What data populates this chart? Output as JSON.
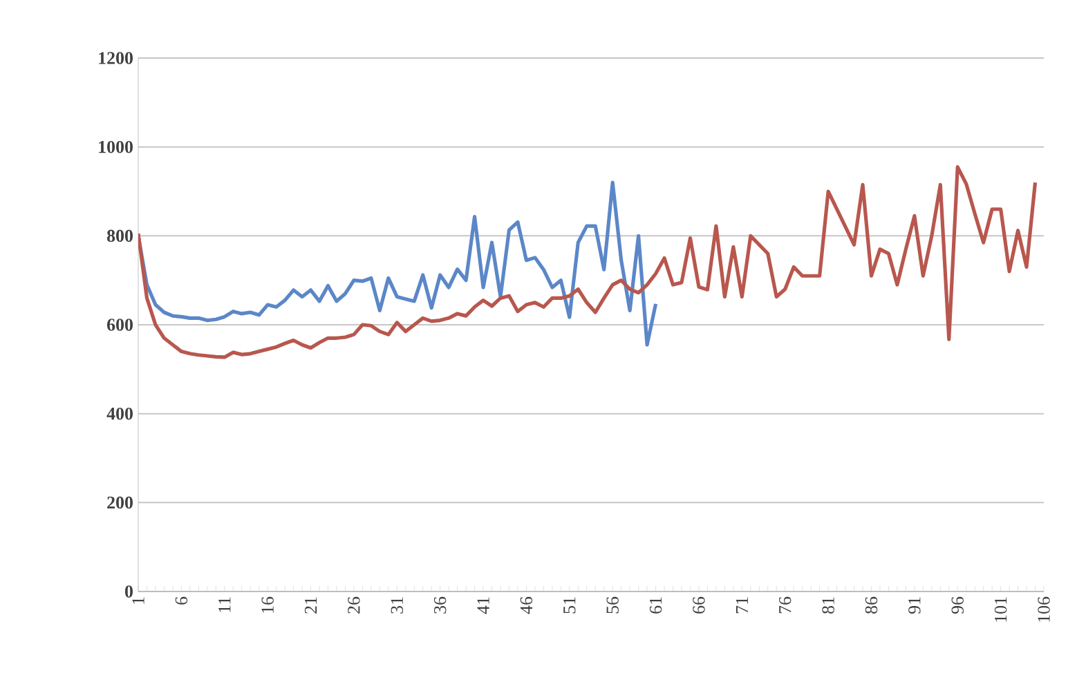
{
  "chart_data": {
    "type": "line",
    "categories": [
      "1",
      null,
      null,
      null,
      null,
      "6",
      null,
      null,
      null,
      null,
      "11",
      null,
      null,
      null,
      null,
      "16",
      null,
      null,
      null,
      null,
      "21",
      null,
      null,
      null,
      null,
      "26",
      null,
      null,
      null,
      null,
      "31",
      null,
      null,
      null,
      null,
      "36",
      null,
      null,
      null,
      null,
      "41",
      null,
      null,
      null,
      null,
      "46",
      null,
      null,
      null,
      null,
      "51",
      null,
      null,
      null,
      null,
      "56",
      null,
      null,
      null,
      null,
      "61",
      null,
      null,
      null,
      null,
      "66",
      null,
      null,
      null,
      null,
      "71",
      null,
      null,
      null,
      null,
      "76",
      null,
      null,
      null,
      null,
      "81",
      null,
      null,
      null,
      null,
      "86",
      null,
      null,
      null,
      null,
      "91",
      null,
      null,
      null,
      null,
      "96",
      null,
      null,
      null,
      null,
      "101",
      null,
      null,
      null,
      null,
      "106"
    ],
    "series": [
      {
        "color": "#5b87c8",
        "values": [
          800,
          690,
          645,
          628,
          620,
          618,
          615,
          615,
          610,
          612,
          618,
          630,
          625,
          628,
          622,
          645,
          640,
          655,
          678,
          663,
          678,
          653,
          688,
          653,
          670,
          700,
          698,
          705,
          632,
          705,
          663,
          658,
          653,
          712,
          638,
          712,
          684,
          725,
          700,
          843,
          684,
          785,
          663,
          813,
          831,
          745,
          751,
          724,
          684,
          700,
          617,
          785,
          822,
          822,
          724,
          920,
          745,
          632,
          800,
          555,
          647,
          null,
          null,
          null,
          null,
          null,
          null,
          null,
          null,
          null,
          null,
          null,
          null,
          null,
          null,
          null,
          null,
          null,
          null,
          null,
          null,
          null,
          null,
          null,
          null,
          null,
          null,
          null,
          null,
          null,
          null,
          null,
          null,
          null,
          null,
          null,
          null,
          null,
          null,
          null,
          null,
          null,
          null,
          null,
          null,
          null
        ]
      },
      {
        "color": "#b8574e",
        "values": [
          805,
          660,
          600,
          570,
          555,
          540,
          535,
          532,
          530,
          528,
          527,
          538,
          533,
          535,
          540,
          545,
          550,
          558,
          565,
          555,
          548,
          560,
          570,
          570,
          572,
          578,
          600,
          598,
          585,
          578,
          605,
          585,
          600,
          615,
          608,
          610,
          615,
          625,
          620,
          640,
          655,
          642,
          660,
          665,
          630,
          645,
          650,
          640,
          660,
          660,
          665,
          680,
          650,
          628,
          660,
          690,
          700,
          680,
          672,
          690,
          715,
          750,
          690,
          695,
          795,
          685,
          679,
          822,
          663,
          775,
          663,
          800,
          780,
          760,
          663,
          680,
          730,
          710,
          710,
          710,
          900,
          860,
          820,
          780,
          915,
          710,
          770,
          760,
          690,
          770,
          845,
          710,
          800,
          915,
          567,
          955,
          917,
          850,
          785,
          860,
          860,
          720,
          812,
          730,
          920,
          null
        ]
      }
    ],
    "ylim": [
      0,
      1200
    ],
    "yticks": [
      0,
      200,
      400,
      600,
      800,
      1000,
      1200
    ],
    "grid": "y",
    "marker": "none",
    "line_style": "solid"
  }
}
